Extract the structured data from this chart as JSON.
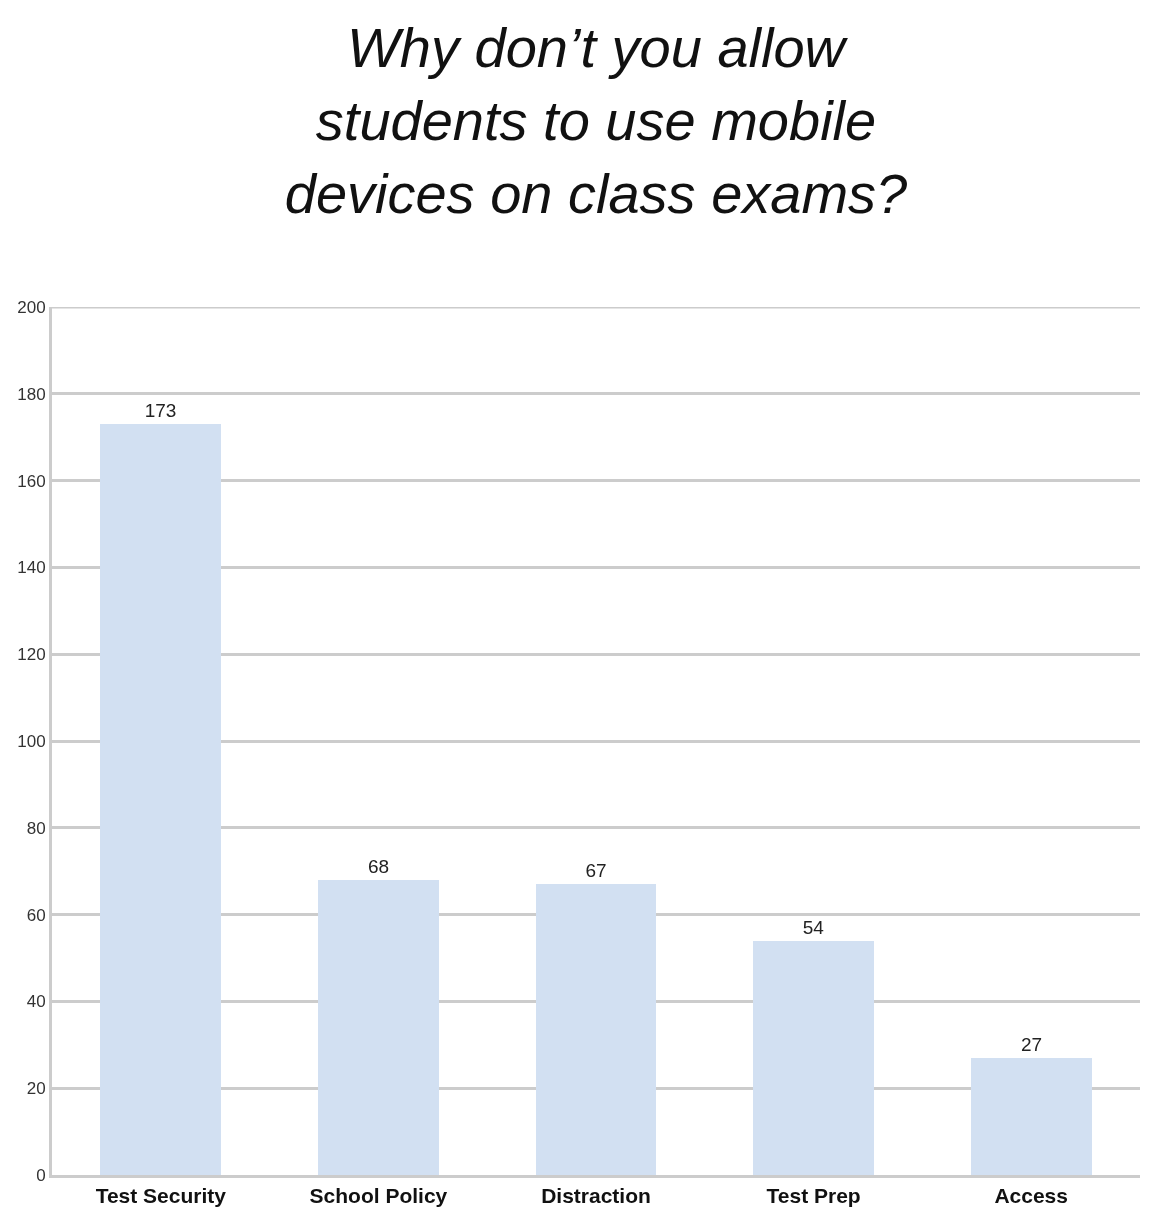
{
  "chart_data": {
    "type": "bar",
    "title": "Why don’t you allow\nstudents to use mobile\ndevices on class exams?",
    "categories": [
      "Test Security",
      "School Policy",
      "Distraction",
      "Test Prep",
      "Access"
    ],
    "values": [
      173,
      68,
      67,
      54,
      27
    ],
    "color": "#d2e0f2",
    "ylim": [
      0,
      200
    ],
    "yticks": [
      0,
      20,
      40,
      60,
      80,
      100,
      120,
      140,
      160,
      180,
      200
    ],
    "grid": "y",
    "data_labels": true
  }
}
